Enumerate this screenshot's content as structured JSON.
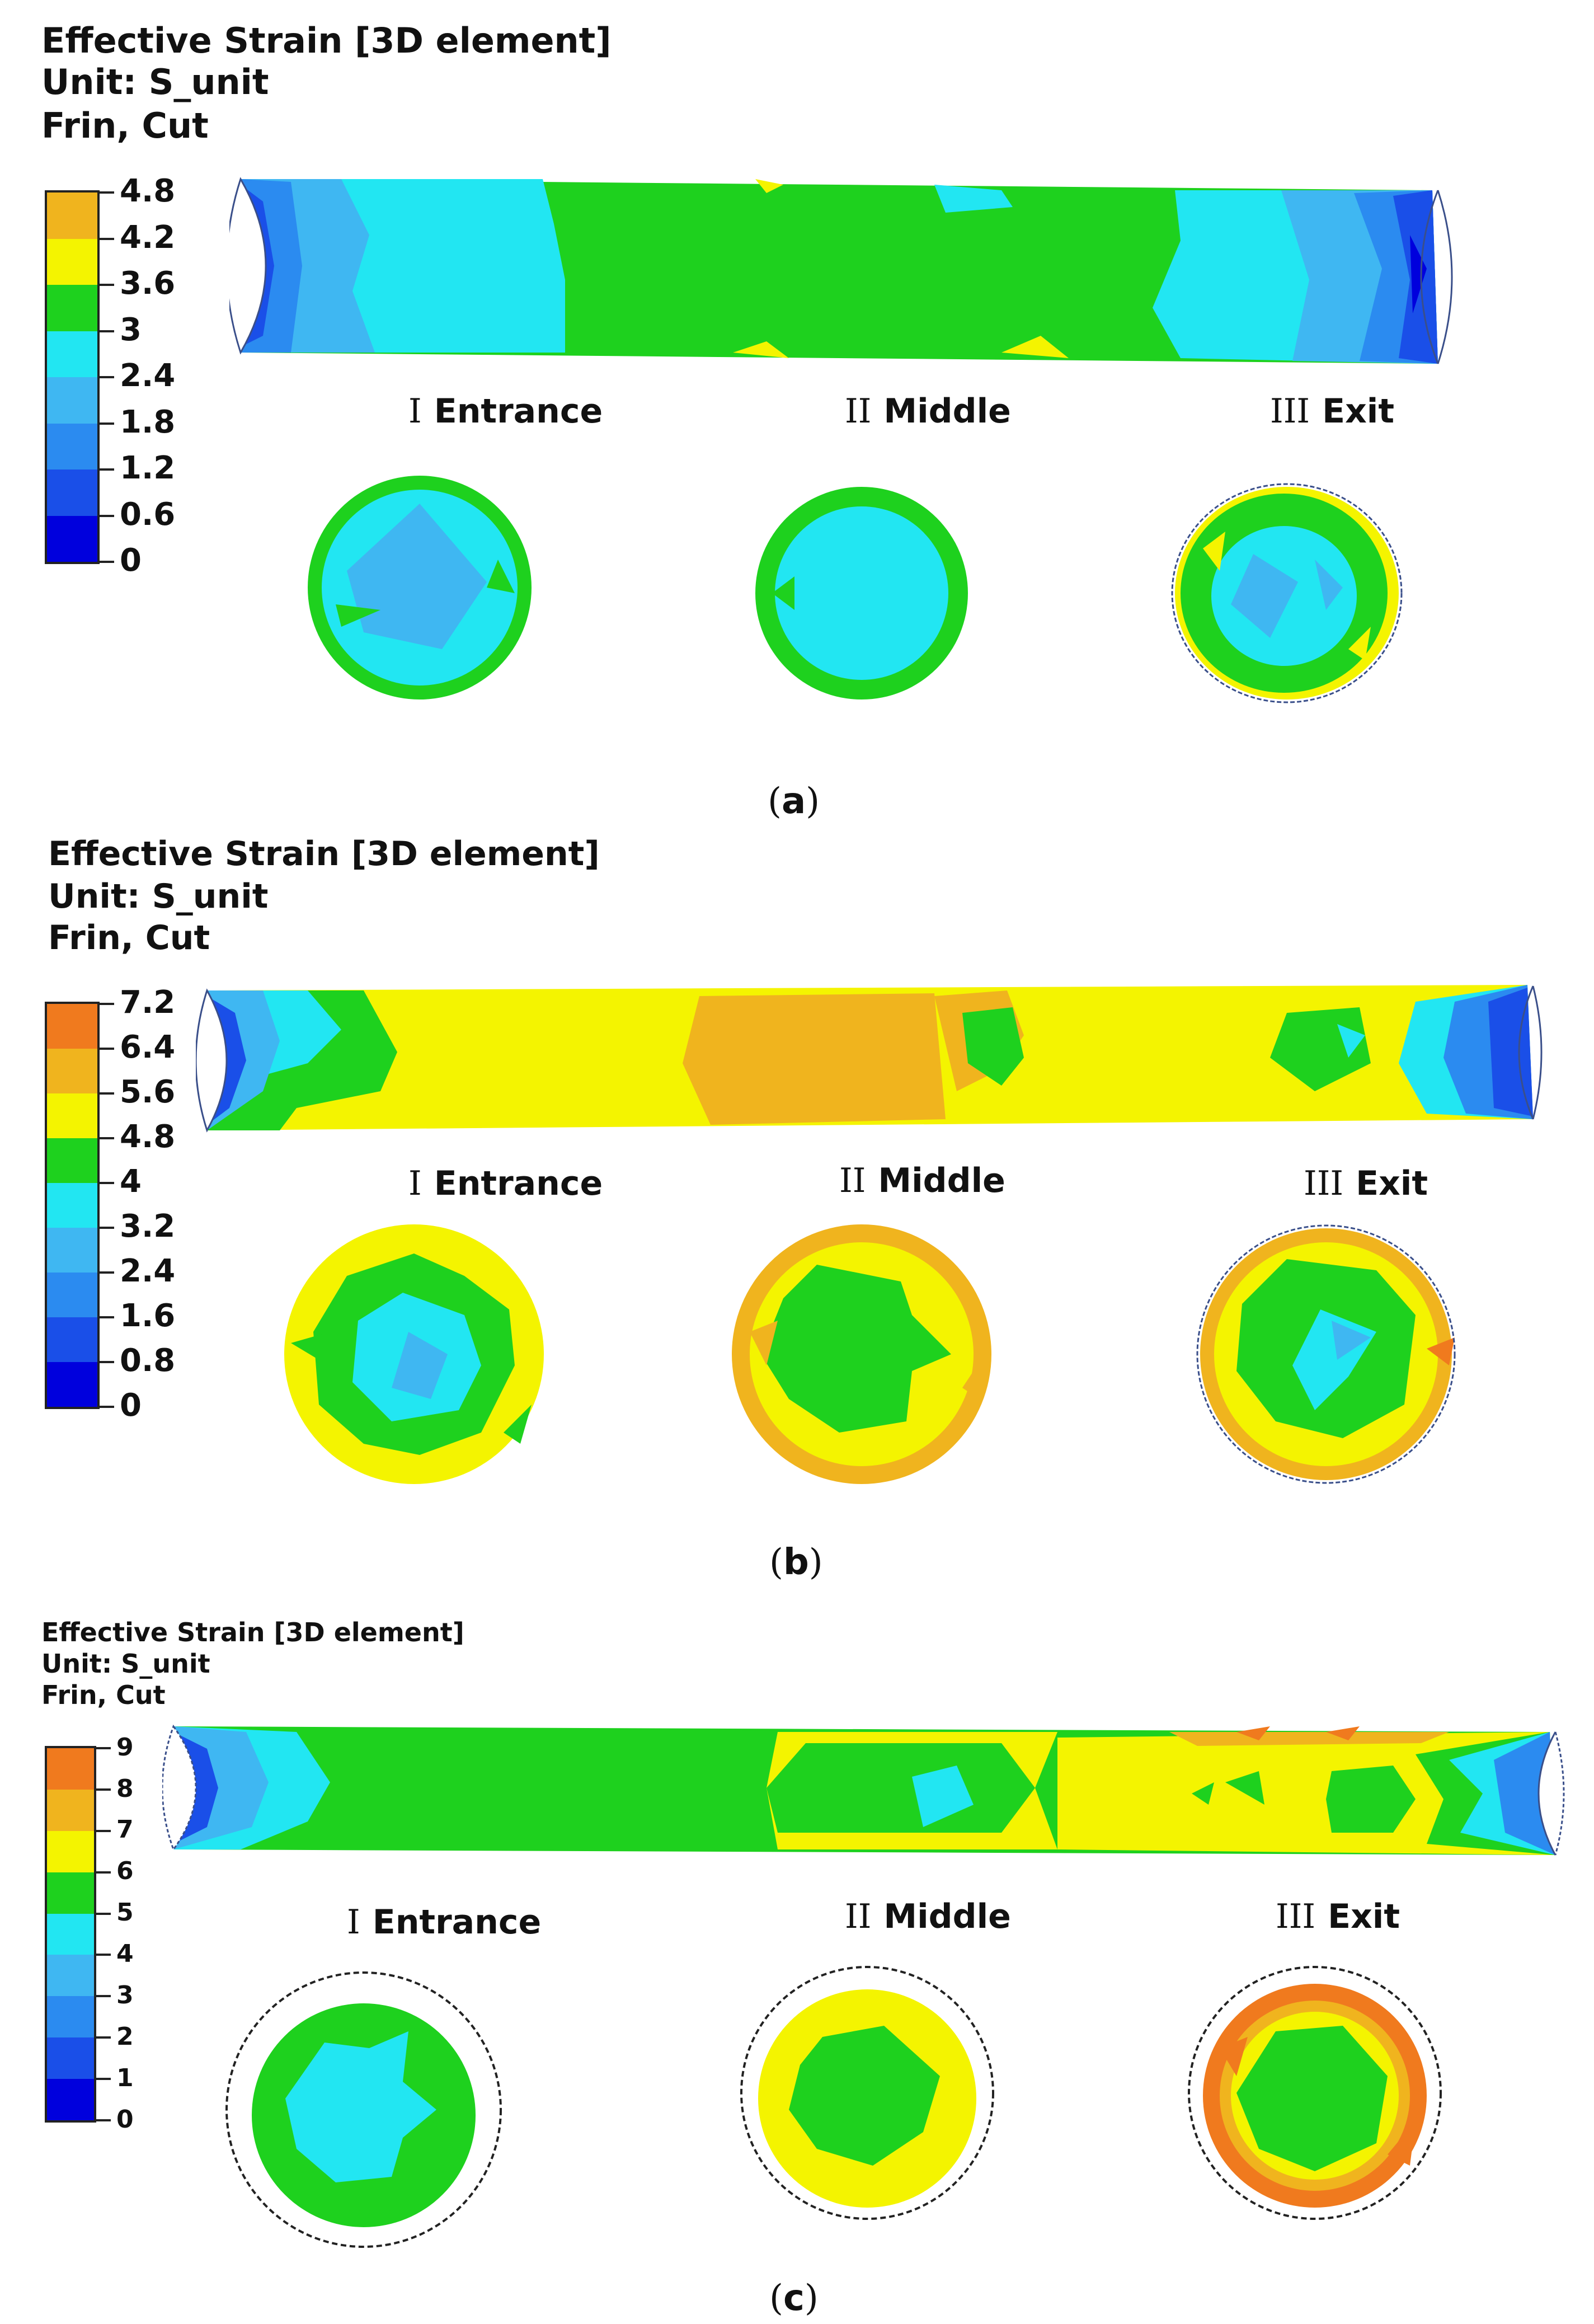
{
  "colors": {
    "c0": "#0000dd",
    "c1": "#1a4fe8",
    "c2": "#2b8bf0",
    "c3": "#3fb7f2",
    "c4": "#22e6f2",
    "c5": "#1ed11e",
    "c6": "#f4f400",
    "c7": "#f0b41e",
    "c8": "#f07a1e"
  },
  "panels": [
    {
      "header": [
        "Effective Strain [3D element]",
        "Unit: S_unit",
        "Frin, Cut"
      ],
      "legend": [
        "4.8",
        "4.2",
        "3.6",
        "3",
        "2.4",
        "1.8",
        "1.2",
        "0.6",
        "0"
      ],
      "legend_colors": [
        "#f0b41e",
        "#f4f400",
        "#1ed11e",
        "#22e6f2",
        "#3fb7f2",
        "#2b8bf0",
        "#1a4fe8",
        "#0000dd"
      ],
      "sections": [
        {
          "num": "I",
          "name": "Entrance"
        },
        {
          "num": "II",
          "name": "Middle"
        },
        {
          "num": "III",
          "name": "Exit"
        }
      ],
      "caption_letter": "a"
    },
    {
      "header": [
        "Effective Strain [3D element]",
        "Unit: S_unit",
        "Frin, Cut"
      ],
      "legend": [
        "7.2",
        "6.4",
        "5.6",
        "4.8",
        "4",
        "3.2",
        "2.4",
        "1.6",
        "0.8",
        "0"
      ],
      "legend_colors": [
        "#f07a1e",
        "#f0b41e",
        "#f4f400",
        "#1ed11e",
        "#22e6f2",
        "#3fb7f2",
        "#2b8bf0",
        "#1a4fe8",
        "#0000dd"
      ],
      "sections": [
        {
          "num": "I",
          "name": "Entrance"
        },
        {
          "num": "II",
          "name": "Middle"
        },
        {
          "num": "III",
          "name": "Exit"
        }
      ],
      "caption_letter": "b"
    },
    {
      "header": [
        "Effective Strain [3D element]",
        "Unit: S_unit",
        "Frin, Cut"
      ],
      "legend": [
        "9",
        "8",
        "7",
        "6",
        "5",
        "4",
        "3",
        "2",
        "1",
        "0"
      ],
      "legend_colors": [
        "#f07a1e",
        "#f0b41e",
        "#f4f400",
        "#1ed11e",
        "#22e6f2",
        "#3fb7f2",
        "#2b8bf0",
        "#1a4fe8",
        "#0000dd"
      ],
      "sections": [
        {
          "num": "I",
          "name": "Entrance"
        },
        {
          "num": "II",
          "name": "Middle"
        },
        {
          "num": "III",
          "name": "Exit"
        }
      ],
      "caption_letter": "c"
    }
  ]
}
